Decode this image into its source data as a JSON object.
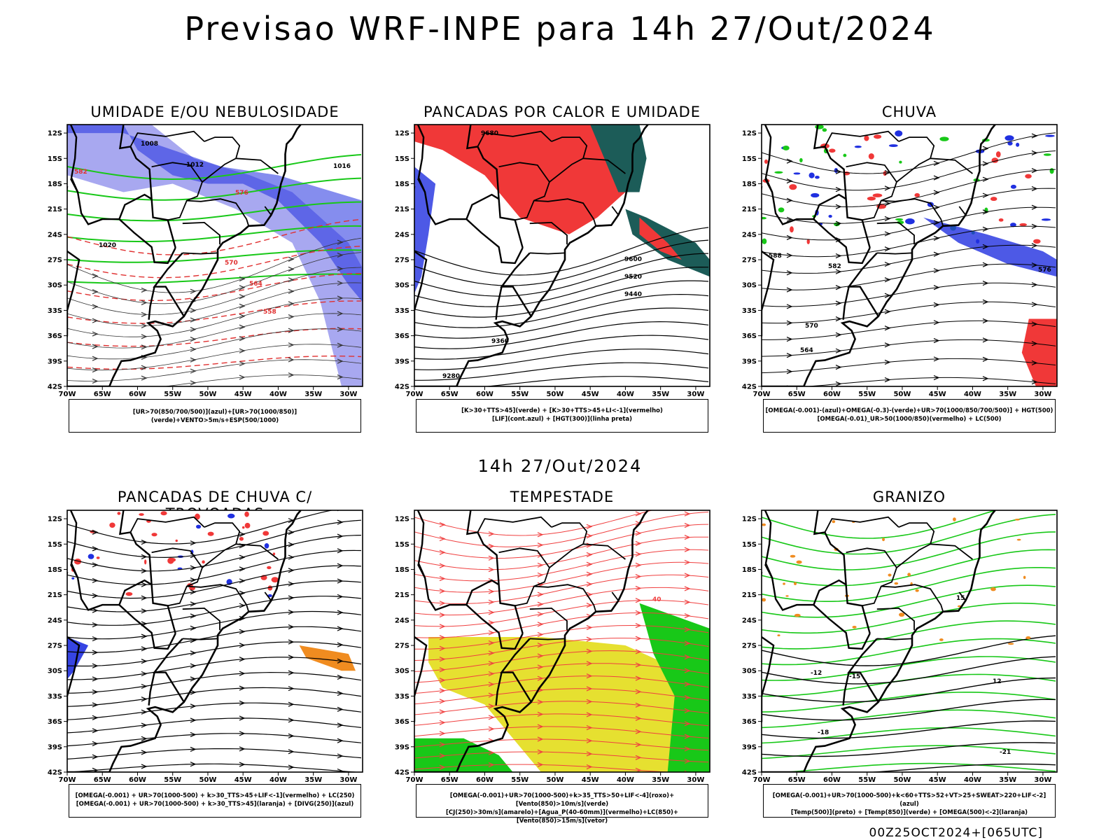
{
  "title": "Previsao WRF-INPE  para 14h 27/Out/2024",
  "mid_title": "14h 27/Out/2024",
  "footer": "00Z25OCT2024+[065UTC]",
  "axes": {
    "lat_ticks": [
      "12S",
      "15S",
      "18S",
      "21S",
      "24S",
      "27S",
      "30S",
      "33S",
      "36S",
      "39S",
      "42S"
    ],
    "lon_ticks": [
      "70W",
      "65W",
      "60W",
      "55W",
      "50W",
      "45W",
      "40W",
      "35W",
      "30W"
    ]
  },
  "panels": [
    {
      "title": "UMIDADE E/OU NEBULOSIDADE",
      "legend": [
        "[UR>70(850/700/500)](azul)+[UR>70(1000/850)](verde)+VENTO>5m/s+ESP(500/1000)"
      ],
      "contour_labels": [
        "1008",
        "1012",
        "1016",
        "1020",
        "576",
        "570",
        "564",
        "558",
        "582"
      ]
    },
    {
      "title": "PANCADAS POR CALOR E UMIDADE",
      "legend": [
        "[K>30+TTS>45](verde) + [K>30+TTS>45+LI<-1](vermelho)",
        "[LIF](cont.azul) + [HGT(300)](linha preta)"
      ],
      "contour_labels": [
        "9680",
        "9600",
        "9520",
        "9440",
        "9360",
        "9280"
      ]
    },
    {
      "title": "CHUVA",
      "legend": [
        "[OMEGA(-0.001)-(azul)+OMEGA(-0.3)-(verde)+UR>70(1000/850/700/500)] + HGT(500)",
        "[OMEGA(-0.01)_UR>50(1000/850)(vermelho) + LC(500)"
      ],
      "contour_labels": [
        "588",
        "582",
        "576",
        "570",
        "564"
      ]
    },
    {
      "title": "PANCADAS DE CHUVA C/ TROVOADAS",
      "legend": [
        "[OMEGA(-0.001) + UR>70(1000-500) + k>30_TTS>45+LIF<-1](vermelho) + LC(250)",
        "[OMEGA(-0.001) + UR>70(1000-500) + k>30_TTS>45](laranja) + [DIVG(250)](azul)"
      ],
      "contour_labels": []
    },
    {
      "title": "TEMPESTADE",
      "legend": [
        "[OMEGA(-0.001)+UR>70(1000-500)+k>35_TTS>50+LIF<-4](roxo)+[Vento(850)>10m/s](verde)",
        "[CJ(250)>30m/s](amarelo)+[Agua_P(40-60mm)](vermelho)+LC(850)+[Vento(850)>15m/s](vetor)"
      ],
      "contour_labels": [
        "40"
      ]
    },
    {
      "title": "GRANIZO",
      "legend": [
        "[OMEGA(-0.001)+UR>70(1000-500)+k<60+TTS>52+VT>25+SWEAT>220+LIF<-2](azul)",
        "[Temp(500)](preto) + [Temp(850)](verde) + [OMEGA(500)<-2](laranja)"
      ],
      "contour_labels": [
        "-12",
        "-15",
        "-18",
        "-21",
        "12",
        "15"
      ]
    }
  ],
  "colors": {
    "blue": "#2030e0",
    "lightblue": "#a8a8f0",
    "green": "#18c818",
    "red": "#f03838",
    "darkteal": "#1c5c58",
    "yellow": "#e6e030",
    "orange": "#f08c20",
    "purple": "#b040d0"
  }
}
